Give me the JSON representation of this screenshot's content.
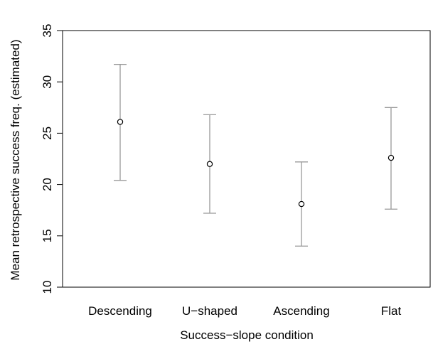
{
  "chart_data": {
    "type": "scatter",
    "subtype": "point-with-error-bars",
    "title": "",
    "xlabel": "Success−slope condition",
    "ylabel": "Mean retrospective success freq. (estimated)",
    "ylim": [
      10,
      35
    ],
    "yticks": [
      10,
      15,
      20,
      25,
      30,
      35
    ],
    "ytick_labels": [
      "10",
      "15",
      "20",
      "25",
      "30",
      "35"
    ],
    "categories": [
      "Descending",
      "U−shaped",
      "Ascending",
      "Flat"
    ],
    "points": [
      {
        "category": "Descending",
        "mean": 26.1,
        "lower": 20.4,
        "upper": 31.7
      },
      {
        "category": "U−shaped",
        "mean": 22.0,
        "lower": 17.2,
        "upper": 26.8
      },
      {
        "category": "Ascending",
        "mean": 18.1,
        "lower": 14.0,
        "upper": 22.2
      },
      {
        "category": "Flat",
        "mean": 22.6,
        "lower": 17.6,
        "upper": 27.5
      }
    ],
    "grid": false,
    "legend": "none",
    "colors": {
      "errorbar": "#999999",
      "point_stroke": "#000000",
      "axis": "#000000"
    }
  }
}
